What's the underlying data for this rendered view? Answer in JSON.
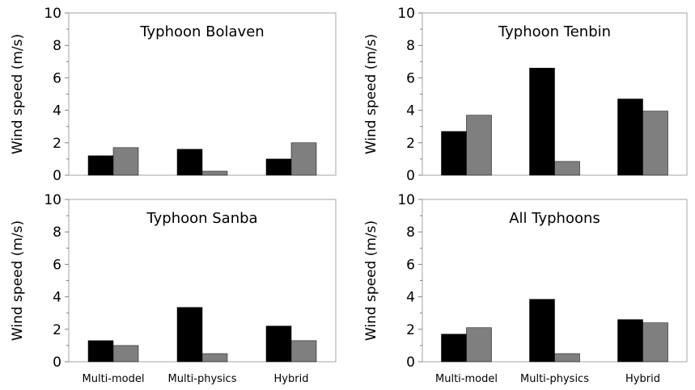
{
  "chart_data": [
    {
      "type": "bar",
      "title": "Typhoon Bolaven",
      "ylabel": "Wind speed (m/s)",
      "ylim": [
        0,
        10
      ],
      "yticks": [
        "0",
        "2",
        "4",
        "6",
        "8",
        "10"
      ],
      "categories": [
        "Multi-model",
        "Multi-physics",
        "Hybrid"
      ],
      "series": [
        {
          "color": "#000000",
          "values": [
            1.2,
            1.6,
            1.0
          ]
        },
        {
          "color": "#7f7f7f",
          "values": [
            1.7,
            0.25,
            2.0
          ]
        }
      ]
    },
    {
      "type": "bar",
      "title": "Typhoon Tenbin",
      "ylabel": "Wind speed (m/s)",
      "ylim": [
        0,
        10
      ],
      "yticks": [
        "0",
        "2",
        "4",
        "6",
        "8",
        "10"
      ],
      "categories": [
        "Multi-model",
        "Multi-physics",
        "Hybrid"
      ],
      "series": [
        {
          "color": "#000000",
          "values": [
            2.7,
            6.6,
            4.7
          ]
        },
        {
          "color": "#7f7f7f",
          "values": [
            3.7,
            0.85,
            3.95
          ]
        }
      ]
    },
    {
      "type": "bar",
      "title": "Typhoon Sanba",
      "ylabel": "Wind speed (m/s)",
      "ylim": [
        0,
        10
      ],
      "yticks": [
        "0",
        "2",
        "4",
        "6",
        "8",
        "10"
      ],
      "categories": [
        "Multi-model",
        "Multi-physics",
        "Hybrid"
      ],
      "series": [
        {
          "color": "#000000",
          "values": [
            1.3,
            3.35,
            2.2
          ]
        },
        {
          "color": "#7f7f7f",
          "values": [
            1.0,
            0.5,
            1.3
          ]
        }
      ]
    },
    {
      "type": "bar",
      "title": "All Typhoons",
      "ylabel": "Wind speed (m/s)",
      "ylim": [
        0,
        10
      ],
      "yticks": [
        "0",
        "2",
        "4",
        "6",
        "8",
        "10"
      ],
      "categories": [
        "Multi-model",
        "Multi-physics",
        "Hybrid"
      ],
      "series": [
        {
          "color": "#000000",
          "values": [
            1.7,
            3.85,
            2.6
          ]
        },
        {
          "color": "#7f7f7f",
          "values": [
            2.1,
            0.5,
            2.4
          ]
        }
      ]
    }
  ]
}
